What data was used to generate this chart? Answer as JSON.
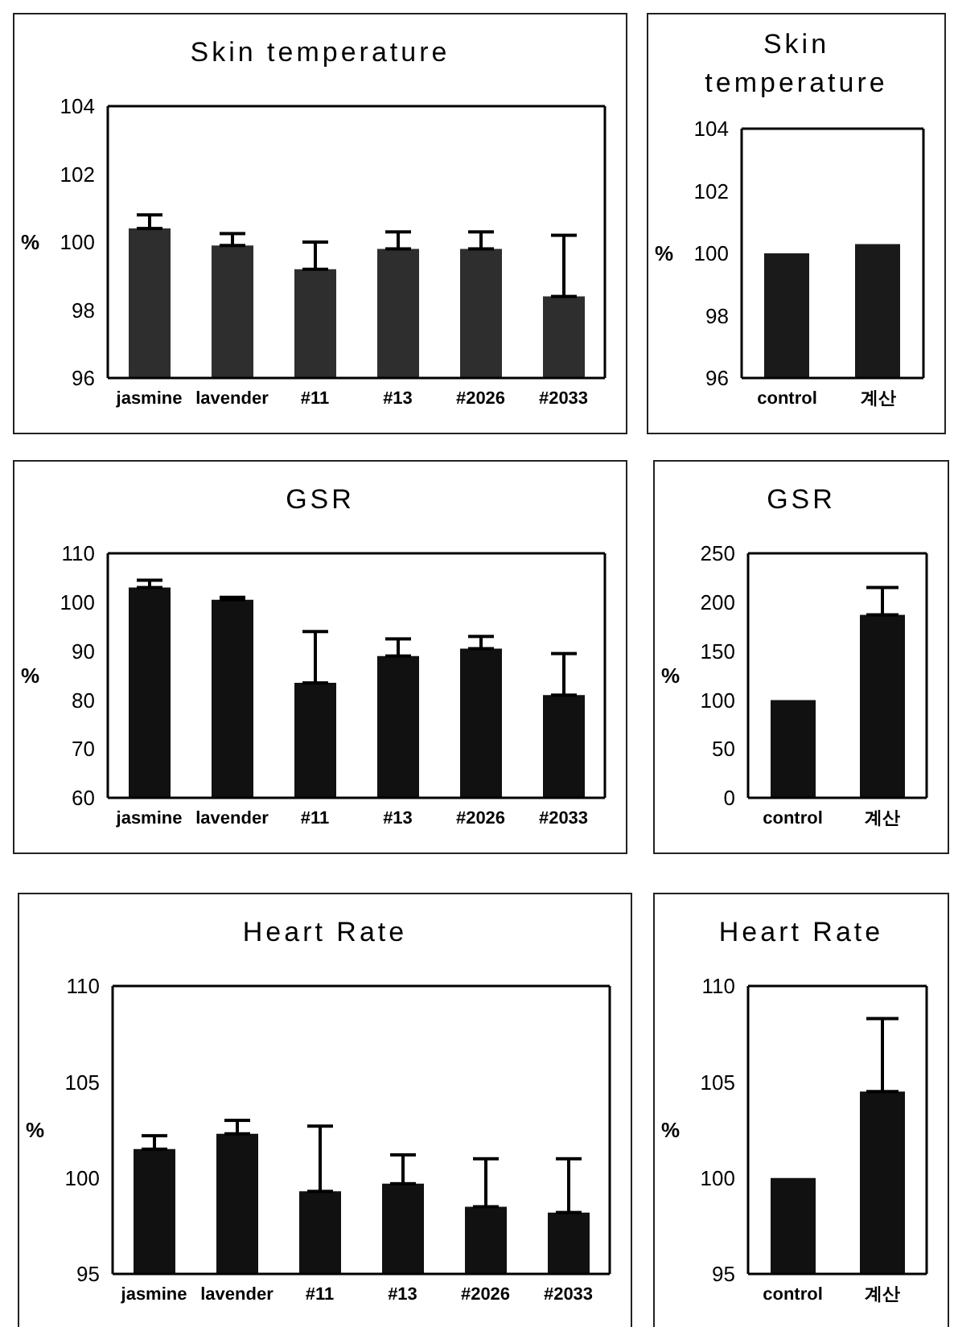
{
  "chart_data": [
    {
      "type": "bar",
      "title": "Skin temperature",
      "ylabel": "%",
      "categories": [
        "jasmine",
        "lavender",
        "#11",
        "#13",
        "#2026",
        "#2033"
      ],
      "values": [
        100.4,
        99.9,
        99.2,
        99.8,
        99.8,
        98.4
      ],
      "errors": [
        [
          100.4,
          100.8
        ],
        [
          99.9,
          100.25
        ],
        [
          99.2,
          100.0
        ],
        [
          99.8,
          100.3
        ],
        [
          99.8,
          100.3
        ],
        [
          98.4,
          100.2
        ]
      ],
      "color": "#2e2e2e",
      "ylim": [
        96,
        104
      ],
      "yticks": [
        96,
        98,
        100,
        102,
        104
      ]
    },
    {
      "type": "bar",
      "title": "Skin temperature",
      "ylabel": "%",
      "categories": [
        "control",
        "계산"
      ],
      "values": [
        100,
        100.3
      ],
      "color": "#1a1a1a",
      "ylim": [
        96,
        104
      ],
      "yticks": [
        96,
        98,
        100,
        102,
        104
      ]
    },
    {
      "type": "bar",
      "title": "GSR",
      "ylabel": "%",
      "categories": [
        "jasmine",
        "lavender",
        "#11",
        "#13",
        "#2026",
        "#2033"
      ],
      "values": [
        103,
        100.5,
        83.5,
        89,
        90.5,
        81
      ],
      "errors": [
        [
          103,
          104.5
        ],
        [
          100.5,
          101
        ],
        [
          83.5,
          94
        ],
        [
          89,
          92.5
        ],
        [
          90.5,
          93
        ],
        [
          81,
          89.5
        ]
      ],
      "color": "#111111",
      "ylim": [
        60,
        110
      ],
      "yticks": [
        60,
        70,
        80,
        90,
        100,
        110
      ]
    },
    {
      "type": "bar",
      "title": "GSR",
      "ylabel": "%",
      "categories": [
        "control",
        "계산"
      ],
      "values": [
        100,
        187
      ],
      "errors": [
        null,
        [
          187,
          215
        ]
      ],
      "color": "#111111",
      "ylim": [
        0,
        250
      ],
      "yticks": [
        0,
        50,
        100,
        150,
        200,
        250
      ]
    },
    {
      "type": "bar",
      "title": "Heart Rate",
      "ylabel": "%",
      "categories": [
        "jasmine",
        "lavender",
        "#11",
        "#13",
        "#2026",
        "#2033"
      ],
      "values": [
        101.5,
        102.3,
        99.3,
        99.7,
        98.5,
        98.2
      ],
      "errors": [
        [
          101.5,
          102.2
        ],
        [
          102.3,
          103
        ],
        [
          99.3,
          102.7
        ],
        [
          99.7,
          101.2
        ],
        [
          98.5,
          101
        ],
        [
          98.2,
          101
        ]
      ],
      "color": "#111111",
      "ylim": [
        95,
        110
      ],
      "yticks": [
        95,
        100,
        105,
        110
      ]
    },
    {
      "type": "bar",
      "title": "Heart Rate",
      "ylabel": "%",
      "categories": [
        "control",
        "계산"
      ],
      "values": [
        100,
        104.5
      ],
      "errors": [
        null,
        [
          104.5,
          108.3
        ]
      ],
      "color": "#111111",
      "ylim": [
        95,
        110
      ],
      "yticks": [
        95,
        100,
        105,
        110
      ]
    }
  ]
}
